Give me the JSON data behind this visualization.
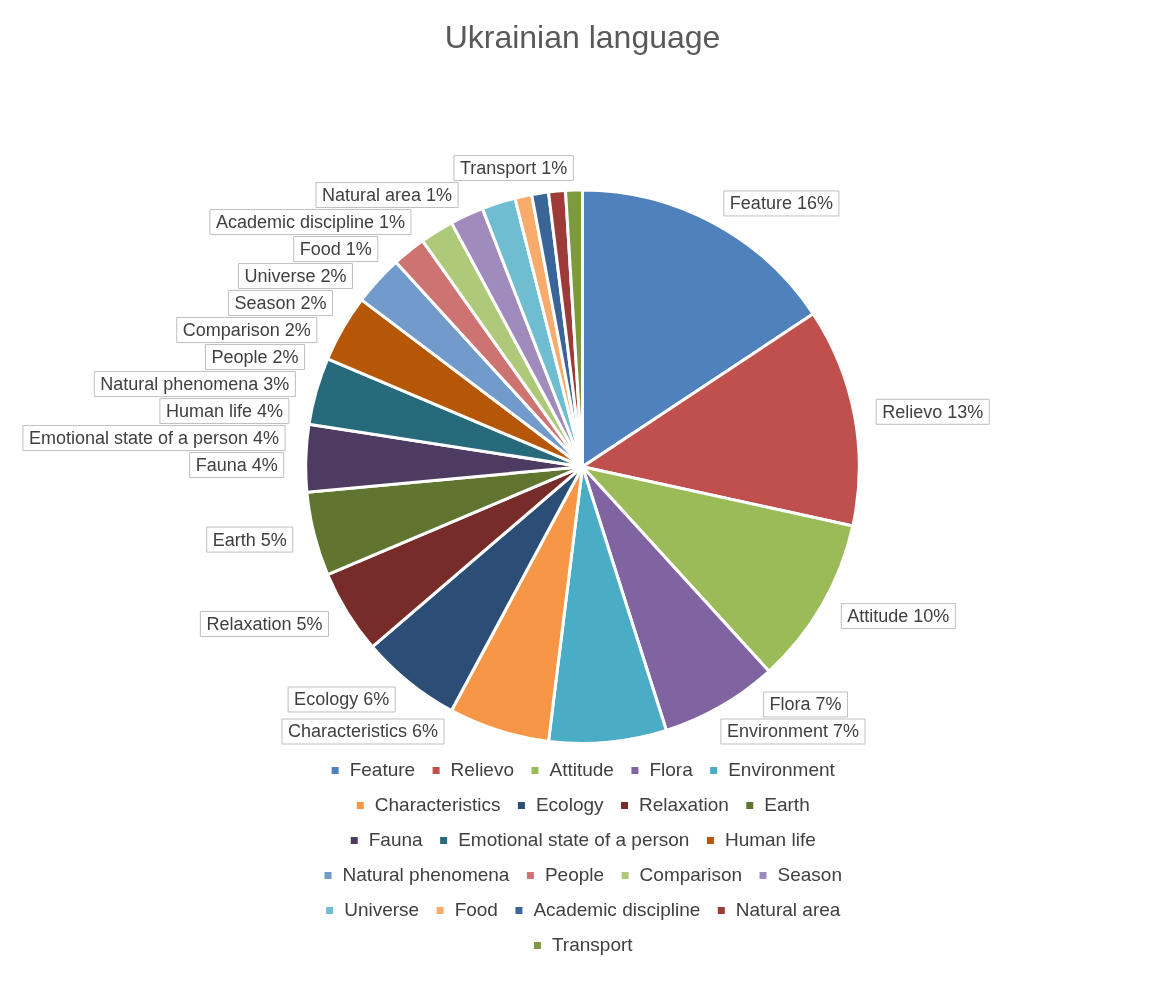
{
  "chart_data": {
    "type": "pie",
    "title": "Ukrainian language",
    "categories": [
      "Feature",
      "Relievo",
      "Attitude",
      "Flora",
      "Environment",
      "Characteristics",
      "Ecology",
      "Relaxation",
      "Earth",
      "Fauna",
      "Emotional state of a person",
      "Human life",
      "Natural phenomena",
      "People",
      "Comparison",
      "Season",
      "Universe",
      "Food",
      "Academic discipline",
      "Natural area",
      "Transport"
    ],
    "values": [
      16,
      13,
      10,
      7,
      7,
      6,
      6,
      5,
      5,
      4,
      4,
      4,
      3,
      2,
      2,
      2,
      2,
      1,
      1,
      1,
      1
    ],
    "value_labels": [
      "16%",
      "13%",
      "10%",
      "7%",
      "7%",
      "6%",
      "6%",
      "5%",
      "5%",
      "4%",
      "4%",
      "4%",
      "3%",
      "2%",
      "2%",
      "2%",
      "2%",
      "1%",
      "1%",
      "1%",
      "1%"
    ],
    "colors": [
      "#4f81bd",
      "#c0504d",
      "#9bbb59",
      "#8064a2",
      "#4bacc6",
      "#f79646",
      "#2c4d75",
      "#772c2a",
      "#5f7530",
      "#4d3b62",
      "#276a7c",
      "#b65708",
      "#729aca",
      "#cd7371",
      "#afc97a",
      "#a08cbc",
      "#6fbdd1",
      "#f9ab6b",
      "#3a6599",
      "#9c3b38",
      "#7e9a41"
    ],
    "legend": "bottom"
  }
}
